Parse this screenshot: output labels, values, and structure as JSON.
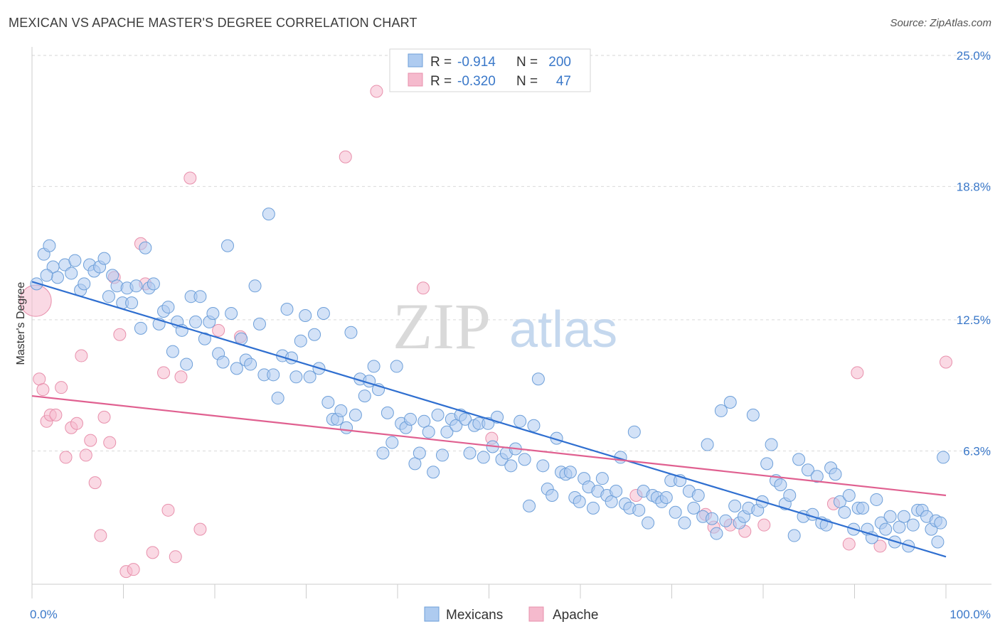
{
  "title": "MEXICAN VS APACHE MASTER'S DEGREE CORRELATION CHART",
  "source": "Source: ZipAtlas.com",
  "watermark": {
    "zip": "ZIP",
    "atlas": "atlas"
  },
  "colors": {
    "blue_fill": "#aecbf0",
    "blue_stroke": "#6d9fd9",
    "blue_line": "#2f6fd0",
    "pink_fill": "#f5bacd",
    "pink_stroke": "#e890ac",
    "pink_line": "#e06090",
    "tick": "#3a78c9",
    "grid": "#d9d9d9"
  },
  "legend": {
    "rows": [
      {
        "r_label": "R =",
        "r_value": "-0.914",
        "n_label": "N =",
        "n_value": "200",
        "color": "blue"
      },
      {
        "r_label": "R =",
        "r_value": "-0.320",
        "n_label": "N =",
        "n_value": "47",
        "color": "pink"
      }
    ]
  },
  "bottom_legend": [
    {
      "label": "Mexicans",
      "color": "blue"
    },
    {
      "label": "Apache",
      "color": "pink"
    }
  ],
  "chart_data": {
    "type": "scatter",
    "title": "MEXICAN VS APACHE MASTER'S DEGREE CORRELATION CHART",
    "xlabel": "",
    "ylabel": "Master's Degree",
    "xlim": [
      0,
      100
    ],
    "ylim": [
      0,
      25.6
    ],
    "x_tick_labels": [
      {
        "value": 0,
        "label": "0.0%"
      },
      {
        "value": 100,
        "label": "100.0%"
      }
    ],
    "y_ticks": [
      {
        "value": 6.3,
        "label": "6.3%"
      },
      {
        "value": 12.5,
        "label": "12.5%"
      },
      {
        "value": 18.8,
        "label": "18.8%"
      },
      {
        "value": 25.0,
        "label": "25.0%"
      }
    ],
    "grid": true,
    "legend_position": "top-center",
    "series": [
      {
        "name": "Mexicans",
        "color": "blue",
        "r": -0.914,
        "n": 200,
        "trend": [
          [
            0,
            14.3
          ],
          [
            100,
            1.3
          ]
        ],
        "points": [
          [
            0.5,
            14.2
          ],
          [
            1.3,
            15.6
          ],
          [
            1.9,
            16.0
          ],
          [
            2.3,
            15.0
          ],
          [
            2.8,
            14.5
          ],
          [
            3.6,
            15.1
          ],
          [
            4.3,
            14.7
          ],
          [
            4.7,
            15.3
          ],
          [
            5.3,
            13.9
          ],
          [
            5.7,
            14.2
          ],
          [
            6.3,
            15.1
          ],
          [
            6.8,
            14.8
          ],
          [
            7.4,
            15.0
          ],
          [
            7.9,
            15.4
          ],
          [
            8.4,
            13.6
          ],
          [
            8.8,
            14.6
          ],
          [
            9.3,
            14.1
          ],
          [
            9.9,
            13.3
          ],
          [
            10.4,
            14.0
          ],
          [
            10.9,
            13.3
          ],
          [
            11.4,
            14.1
          ],
          [
            11.9,
            12.1
          ],
          [
            12.4,
            15.9
          ],
          [
            12.8,
            14.0
          ],
          [
            13.3,
            14.2
          ],
          [
            13.9,
            12.3
          ],
          [
            14.4,
            12.9
          ],
          [
            14.9,
            13.1
          ],
          [
            15.4,
            11.0
          ],
          [
            15.9,
            12.4
          ],
          [
            16.4,
            12.0
          ],
          [
            16.9,
            10.4
          ],
          [
            17.4,
            13.6
          ],
          [
            17.9,
            12.4
          ],
          [
            18.4,
            13.6
          ],
          [
            18.9,
            11.6
          ],
          [
            19.4,
            12.4
          ],
          [
            19.8,
            12.8
          ],
          [
            20.4,
            10.9
          ],
          [
            20.9,
            10.5
          ],
          [
            21.4,
            16.0
          ],
          [
            21.8,
            12.8
          ],
          [
            22.4,
            10.2
          ],
          [
            22.9,
            11.6
          ],
          [
            23.4,
            10.6
          ],
          [
            23.9,
            10.4
          ],
          [
            24.4,
            14.1
          ],
          [
            24.9,
            12.3
          ],
          [
            25.4,
            9.9
          ],
          [
            25.9,
            17.5
          ],
          [
            26.4,
            9.9
          ],
          [
            26.9,
            8.8
          ],
          [
            27.4,
            10.8
          ],
          [
            27.9,
            13.0
          ],
          [
            28.4,
            10.7
          ],
          [
            28.9,
            9.8
          ],
          [
            29.4,
            11.5
          ],
          [
            29.9,
            12.7
          ],
          [
            30.4,
            9.8
          ],
          [
            30.9,
            11.8
          ],
          [
            31.4,
            10.2
          ],
          [
            31.9,
            12.8
          ],
          [
            32.4,
            8.6
          ],
          [
            32.9,
            7.8
          ],
          [
            33.4,
            7.8
          ],
          [
            33.8,
            8.2
          ],
          [
            34.4,
            7.4
          ],
          [
            34.9,
            11.9
          ],
          [
            35.4,
            8.0
          ],
          [
            35.9,
            9.7
          ],
          [
            36.4,
            8.9
          ],
          [
            36.9,
            9.6
          ],
          [
            37.4,
            10.3
          ],
          [
            37.9,
            9.2
          ],
          [
            38.4,
            6.2
          ],
          [
            38.9,
            8.1
          ],
          [
            39.4,
            6.7
          ],
          [
            39.9,
            10.3
          ],
          [
            40.4,
            7.6
          ],
          [
            40.9,
            7.4
          ],
          [
            41.4,
            7.8
          ],
          [
            41.9,
            5.7
          ],
          [
            42.4,
            6.2
          ],
          [
            42.9,
            7.7
          ],
          [
            43.4,
            7.2
          ],
          [
            43.9,
            5.3
          ],
          [
            44.4,
            8.0
          ],
          [
            44.9,
            6.1
          ],
          [
            45.4,
            7.2
          ],
          [
            45.9,
            7.8
          ],
          [
            46.4,
            7.5
          ],
          [
            46.9,
            8.0
          ],
          [
            47.4,
            7.8
          ],
          [
            47.9,
            6.2
          ],
          [
            48.4,
            7.5
          ],
          [
            48.9,
            7.6
          ],
          [
            49.4,
            6.0
          ],
          [
            49.9,
            7.6
          ],
          [
            50.4,
            6.5
          ],
          [
            50.9,
            7.9
          ],
          [
            51.4,
            5.9
          ],
          [
            51.9,
            6.2
          ],
          [
            52.4,
            5.6
          ],
          [
            52.9,
            6.4
          ],
          [
            53.4,
            7.7
          ],
          [
            53.9,
            5.9
          ],
          [
            54.4,
            3.7
          ],
          [
            54.9,
            7.5
          ],
          [
            55.4,
            9.7
          ],
          [
            55.9,
            5.6
          ],
          [
            56.4,
            4.5
          ],
          [
            56.9,
            4.2
          ],
          [
            57.4,
            6.9
          ],
          [
            57.9,
            5.3
          ],
          [
            58.4,
            5.2
          ],
          [
            58.9,
            5.3
          ],
          [
            59.4,
            4.1
          ],
          [
            59.9,
            3.9
          ],
          [
            60.4,
            5.0
          ],
          [
            60.9,
            4.6
          ],
          [
            61.4,
            3.6
          ],
          [
            61.9,
            4.4
          ],
          [
            62.4,
            5.0
          ],
          [
            62.9,
            4.2
          ],
          [
            63.4,
            3.9
          ],
          [
            63.9,
            4.4
          ],
          [
            64.4,
            6.0
          ],
          [
            64.9,
            3.8
          ],
          [
            65.4,
            3.6
          ],
          [
            65.9,
            7.2
          ],
          [
            66.4,
            3.5
          ],
          [
            66.9,
            4.4
          ],
          [
            67.4,
            2.9
          ],
          [
            67.9,
            4.2
          ],
          [
            68.4,
            4.1
          ],
          [
            68.9,
            3.9
          ],
          [
            69.4,
            4.1
          ],
          [
            69.9,
            4.9
          ],
          [
            70.4,
            3.4
          ],
          [
            70.9,
            4.9
          ],
          [
            71.4,
            2.9
          ],
          [
            71.9,
            4.4
          ],
          [
            72.4,
            3.6
          ],
          [
            72.9,
            4.2
          ],
          [
            73.4,
            3.2
          ],
          [
            73.9,
            6.6
          ],
          [
            74.4,
            3.1
          ],
          [
            74.9,
            2.4
          ],
          [
            75.4,
            8.2
          ],
          [
            75.9,
            3.0
          ],
          [
            76.4,
            8.6
          ],
          [
            76.9,
            3.7
          ],
          [
            77.4,
            2.9
          ],
          [
            77.9,
            3.2
          ],
          [
            78.4,
            3.6
          ],
          [
            78.9,
            8.0
          ],
          [
            79.4,
            3.5
          ],
          [
            79.9,
            3.9
          ],
          [
            80.4,
            5.7
          ],
          [
            80.9,
            6.6
          ],
          [
            81.4,
            4.9
          ],
          [
            81.9,
            4.7
          ],
          [
            82.4,
            3.8
          ],
          [
            82.9,
            4.2
          ],
          [
            83.4,
            2.3
          ],
          [
            83.9,
            5.9
          ],
          [
            84.4,
            3.2
          ],
          [
            84.9,
            5.4
          ],
          [
            85.4,
            3.3
          ],
          [
            85.9,
            5.1
          ],
          [
            86.4,
            2.9
          ],
          [
            86.9,
            2.8
          ],
          [
            87.4,
            5.5
          ],
          [
            87.9,
            5.2
          ],
          [
            88.4,
            3.9
          ],
          [
            88.9,
            3.4
          ],
          [
            89.4,
            4.2
          ],
          [
            89.9,
            2.6
          ],
          [
            90.4,
            3.6
          ],
          [
            90.9,
            3.6
          ],
          [
            91.4,
            2.6
          ],
          [
            91.9,
            2.2
          ],
          [
            92.4,
            4.0
          ],
          [
            92.9,
            2.9
          ],
          [
            93.4,
            2.6
          ],
          [
            93.9,
            3.2
          ],
          [
            94.4,
            2.0
          ],
          [
            94.9,
            2.7
          ],
          [
            95.4,
            3.2
          ],
          [
            95.9,
            1.8
          ],
          [
            96.4,
            2.8
          ],
          [
            96.9,
            3.5
          ],
          [
            97.4,
            3.5
          ],
          [
            97.9,
            3.2
          ],
          [
            98.4,
            2.6
          ],
          [
            98.9,
            3.0
          ],
          [
            99.4,
            2.9
          ],
          [
            99.7,
            6.0
          ],
          [
            99.1,
            2.0
          ],
          [
            1.6,
            14.6
          ]
        ]
      },
      {
        "name": "Apache",
        "color": "pink",
        "r": -0.32,
        "n": 47,
        "trend": [
          [
            0,
            8.9
          ],
          [
            100,
            4.2
          ]
        ],
        "points": [
          [
            0.4,
            13.4
          ],
          [
            0.8,
            9.7
          ],
          [
            1.2,
            9.2
          ],
          [
            1.6,
            7.7
          ],
          [
            2.0,
            8.0
          ],
          [
            2.6,
            8.0
          ],
          [
            3.2,
            9.3
          ],
          [
            3.7,
            6.0
          ],
          [
            4.3,
            7.4
          ],
          [
            4.9,
            7.6
          ],
          [
            5.4,
            10.8
          ],
          [
            5.9,
            6.1
          ],
          [
            6.4,
            6.8
          ],
          [
            6.9,
            4.8
          ],
          [
            7.5,
            2.3
          ],
          [
            7.9,
            7.9
          ],
          [
            8.5,
            6.7
          ],
          [
            9.0,
            14.5
          ],
          [
            9.6,
            11.8
          ],
          [
            10.3,
            0.6
          ],
          [
            11.1,
            0.7
          ],
          [
            11.9,
            16.1
          ],
          [
            12.4,
            14.2
          ],
          [
            13.2,
            1.5
          ],
          [
            14.4,
            10.0
          ],
          [
            14.9,
            3.5
          ],
          [
            15.7,
            1.3
          ],
          [
            16.3,
            9.8
          ],
          [
            17.3,
            19.2
          ],
          [
            18.4,
            2.6
          ],
          [
            20.4,
            12.0
          ],
          [
            22.8,
            11.7
          ],
          [
            34.3,
            20.2
          ],
          [
            37.7,
            23.3
          ],
          [
            42.8,
            14.0
          ],
          [
            50.3,
            6.9
          ],
          [
            66.1,
            4.2
          ],
          [
            73.7,
            3.3
          ],
          [
            74.6,
            2.7
          ],
          [
            76.4,
            2.8
          ],
          [
            78.0,
            2.5
          ],
          [
            80.1,
            2.8
          ],
          [
            87.7,
            3.8
          ],
          [
            89.4,
            1.9
          ],
          [
            90.3,
            10.0
          ],
          [
            92.8,
            1.8
          ],
          [
            100.0,
            10.5
          ]
        ]
      }
    ]
  }
}
